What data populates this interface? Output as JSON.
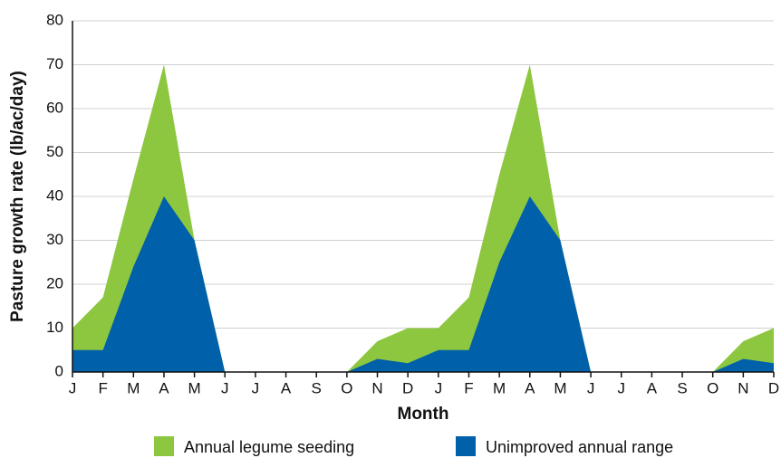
{
  "chart_data": {
    "type": "area",
    "x_label": "Month",
    "y_label": "Pasture growth rate (lb/ac/day)",
    "categories": [
      "J",
      "F",
      "M",
      "A",
      "M",
      "J",
      "J",
      "A",
      "S",
      "O",
      "N",
      "D",
      "J",
      "F",
      "M",
      "A",
      "M",
      "J",
      "J",
      "A",
      "S",
      "O",
      "N",
      "D"
    ],
    "series": [
      {
        "name": "Annual legume seeding",
        "color": "#8dc63f",
        "values": [
          10,
          17,
          44,
          70,
          30,
          0,
          0,
          0,
          0,
          0,
          7,
          10,
          10,
          17,
          45,
          70,
          30,
          0,
          0,
          0,
          0,
          0,
          7,
          10
        ]
      },
      {
        "name": "Unimproved annual range",
        "color": "#0060a9",
        "values": [
          5,
          5,
          24,
          40,
          30,
          0,
          0,
          0,
          0,
          0,
          3,
          2,
          5,
          5,
          25,
          40,
          30,
          0,
          0,
          0,
          0,
          0,
          3,
          2
        ]
      }
    ],
    "ylim": [
      0,
      80
    ],
    "yticks": [
      0,
      10,
      20,
      30,
      40,
      50,
      60,
      70,
      80
    ],
    "grid": true,
    "legend": "bottom"
  }
}
